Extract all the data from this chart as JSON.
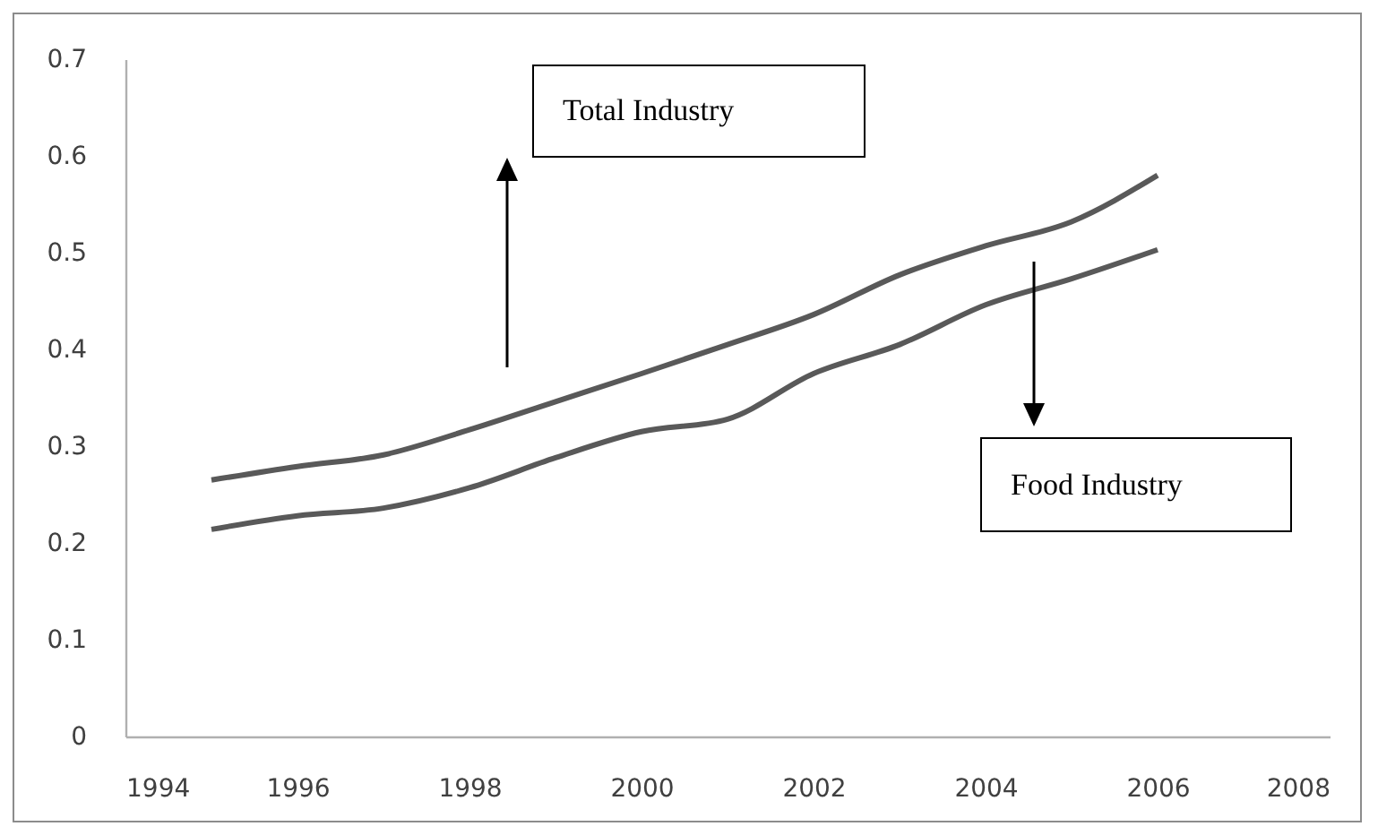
{
  "chart_data": {
    "type": "line",
    "x": [
      1995,
      1996,
      1997,
      1998,
      1999,
      2000,
      2001,
      2002,
      2003,
      2004,
      2005,
      2006
    ],
    "series": [
      {
        "color": "#595959",
        "values": [
          0.265,
          0.279,
          0.291,
          0.317,
          0.346,
          0.375,
          0.405,
          0.436,
          0.477,
          0.507,
          0.532,
          0.58
        ]
      },
      {
        "color": "#595959",
        "values": [
          0.214,
          0.228,
          0.236,
          0.257,
          0.288,
          0.315,
          0.328,
          0.375,
          0.405,
          0.446,
          0.473,
          0.503
        ]
      }
    ],
    "annotations": [
      "Total Industry",
      "Food Industry"
    ],
    "xlim": [
      1994,
      2008
    ],
    "xticks": [
      1994,
      1996,
      1998,
      2000,
      2002,
      2004,
      2006,
      2008
    ],
    "ylim": [
      0,
      0.7
    ],
    "yticks": [
      0,
      0.1,
      0.2,
      0.3,
      0.4,
      0.5,
      0.6,
      0.7
    ],
    "grid": false,
    "legend": false,
    "marker": "none",
    "line_style": "solid"
  }
}
